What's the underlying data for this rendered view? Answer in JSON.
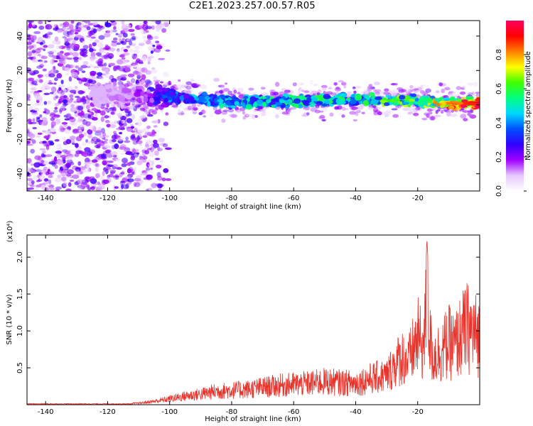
{
  "title": "C2E1.2023.257.00.57.R05",
  "chart_data": [
    {
      "type": "heatmap",
      "title": "",
      "xlabel": "Height of straight line (km)",
      "ylabel": "Frequency (Hz)",
      "xlim": [
        -146,
        0
      ],
      "ylim": [
        -50,
        49
      ],
      "xticks": [
        -140,
        -120,
        -100,
        -80,
        -60,
        -40,
        -20
      ],
      "yticks": [
        -40,
        -20,
        0,
        20,
        40
      ],
      "colorbar": {
        "label": "Normalized spectral amplitude",
        "range": [
          0,
          1
        ],
        "ticks": [
          0.0,
          0.2,
          0.4,
          0.6,
          0.8
        ],
        "colormap": [
          "#ffffff",
          "#e6c8ff",
          "#a000ff",
          "#3000ff",
          "#0050ff",
          "#00d8ff",
          "#00ff80",
          "#40ff00",
          "#ffff00",
          "#ff8000",
          "#ff0000",
          "#ff0060"
        ]
      },
      "signal_band": [
        {
          "x": -146,
          "f": 8,
          "amp": 0.0
        },
        {
          "x": -120,
          "f": 6,
          "amp": 0.1
        },
        {
          "x": -110,
          "f": 5,
          "amp": 0.15
        },
        {
          "x": -100,
          "f": 5,
          "amp": 0.35
        },
        {
          "x": -90,
          "f": 3,
          "amp": 0.4
        },
        {
          "x": -80,
          "f": 2,
          "amp": 0.45
        },
        {
          "x": -70,
          "f": 2,
          "amp": 0.45
        },
        {
          "x": -60,
          "f": 2,
          "amp": 0.5
        },
        {
          "x": -50,
          "f": 3,
          "amp": 0.5
        },
        {
          "x": -40,
          "f": 3,
          "amp": 0.5
        },
        {
          "x": -30,
          "f": 3,
          "amp": 0.55
        },
        {
          "x": -20,
          "f": 2,
          "amp": 0.6
        },
        {
          "x": -10,
          "f": 1,
          "amp": 0.75
        },
        {
          "x": 0,
          "f": 1,
          "amp": 0.9
        }
      ]
    },
    {
      "type": "line",
      "title": "",
      "xlabel": "Height of straight line (km)",
      "ylabel": "SNR (10 * v/v)",
      "y_multiplier_label": "(x10⁴)",
      "xlim": [
        -146,
        0
      ],
      "ylim": [
        0,
        2.3
      ],
      "xticks": [
        -140,
        -120,
        -100,
        -80,
        -60,
        -40,
        -20
      ],
      "yticks": [
        0.5,
        1.0,
        1.5,
        2.0
      ],
      "ytick_labels": [
        "0.5",
        "1.0",
        "1.5",
        "2.0"
      ],
      "color": "#e8322a",
      "series": [
        {
          "x": [
            -146,
            -140,
            -130,
            -120,
            -110,
            -105,
            -100,
            -95,
            -90,
            -85,
            -80,
            -75,
            -70,
            -65,
            -60,
            -55,
            -50,
            -45,
            -40,
            -35,
            -30,
            -28,
            -25,
            -23,
            -20,
            -18,
            -17,
            -16,
            -15,
            -12,
            -10,
            -8,
            -6,
            -4,
            -2,
            0
          ],
          "y": [
            0.01,
            0.01,
            0.01,
            0.02,
            0.03,
            0.07,
            0.12,
            0.18,
            0.22,
            0.28,
            0.3,
            0.32,
            0.36,
            0.4,
            0.42,
            0.44,
            0.48,
            0.46,
            0.45,
            0.55,
            0.6,
            0.8,
            1.0,
            0.9,
            1.4,
            1.2,
            2.25,
            1.3,
            1.0,
            1.15,
            1.3,
            1.2,
            1.45,
            1.6,
            1.5,
            1.4
          ]
        }
      ]
    }
  ]
}
